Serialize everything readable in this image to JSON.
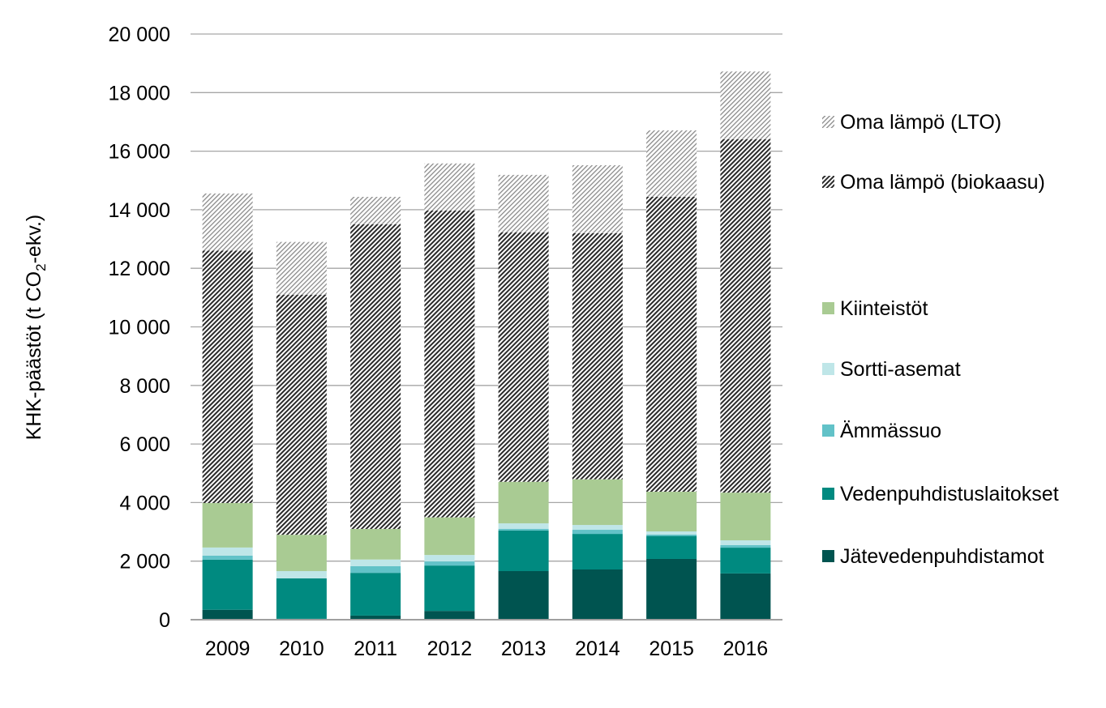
{
  "chart_data": {
    "type": "bar",
    "stacked": true,
    "title": "",
    "xlabel": "",
    "ylabel": {
      "main": "KHK-päästöt (t CO",
      "sub": "2",
      "tail": "-ekv.)"
    },
    "ylim": [
      0,
      20000
    ],
    "yticks": [
      0,
      2000,
      4000,
      6000,
      8000,
      10000,
      12000,
      14000,
      16000,
      18000,
      20000
    ],
    "ytick_labels": [
      "0",
      "2 000",
      "4 000",
      "6 000",
      "8 000",
      "10 000",
      "12 000",
      "14 000",
      "16 000",
      "18 000",
      "20 000"
    ],
    "grid": true,
    "legend_position": "right",
    "categories": [
      "2009",
      "2010",
      "2011",
      "2012",
      "2013",
      "2014",
      "2015",
      "2016"
    ],
    "series": [
      {
        "name": "Jätevedenpuhdistamot",
        "color": "#005450",
        "pattern": "none",
        "values": [
          340,
          30,
          140,
          300,
          1660,
          1715,
          2075,
          1580
        ]
      },
      {
        "name": "Vedenpuhdistuslaitokset",
        "color": "#008a80",
        "pattern": "none",
        "values": [
          1710,
          1380,
          1460,
          1550,
          1385,
          1215,
          785,
          880
        ]
      },
      {
        "name": "Ämmässuo",
        "color": "#62c2c8",
        "pattern": "none",
        "values": [
          140,
          0,
          230,
          140,
          60,
          140,
          45,
          85
        ]
      },
      {
        "name": "Sortti-asemat",
        "color": "#bfe6e8",
        "pattern": "none",
        "values": [
          275,
          250,
          225,
          220,
          185,
          165,
          110,
          165
        ]
      },
      {
        "name": "Kiinteistöt",
        "color": "#a9cb93",
        "pattern": "none",
        "values": [
          1520,
          1240,
          1045,
          1285,
          1420,
          1560,
          1355,
          1630
        ]
      },
      {
        "name": "Oma lämpö (biokaasu)",
        "color": "#333333",
        "pattern": "dense-diagonal",
        "values": [
          8620,
          8200,
          10400,
          10475,
          8520,
          8405,
          10070,
          12070
        ]
      },
      {
        "name": "Oma lämpö (LTO)",
        "color": "#888888",
        "pattern": "light-diagonal",
        "values": [
          1950,
          1800,
          940,
          1610,
          1960,
          2320,
          2270,
          2310
        ]
      }
    ]
  }
}
